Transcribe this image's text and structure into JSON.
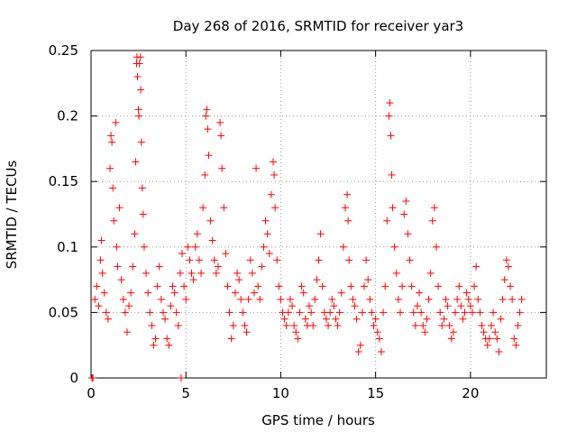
{
  "chart_data": {
    "type": "scatter",
    "title": "Day 268 of 2016, SRMTID for receiver yar3",
    "xlabel": "GPS time / hours",
    "ylabel": "SRMTID / TECUs",
    "xlim": [
      0,
      24
    ],
    "ylim": [
      0,
      0.25
    ],
    "xticks": [
      0,
      5,
      10,
      15,
      20
    ],
    "xtick_labels": [
      "0",
      "5",
      "10",
      "15",
      "20"
    ],
    "yticks": [
      0,
      0.05,
      0.1,
      0.15,
      0.2,
      0.25
    ],
    "ytick_labels": [
      "0",
      "0.05",
      "0.1",
      "0.15",
      "0.2",
      "0.25"
    ],
    "grid": true,
    "marker": "+",
    "color": "#ff0000",
    "series": [
      {
        "name": "SRMTID",
        "points": [
          [
            0.05,
            0.0
          ],
          [
            0.1,
            0.0
          ],
          [
            4.75,
            0.0
          ],
          [
            0.2,
            0.06
          ],
          [
            0.3,
            0.07
          ],
          [
            0.4,
            0.055
          ],
          [
            0.5,
            0.09
          ],
          [
            0.55,
            0.105
          ],
          [
            0.6,
            0.08
          ],
          [
            0.7,
            0.065
          ],
          [
            0.8,
            0.05
          ],
          [
            0.9,
            0.045
          ],
          [
            1.0,
            0.16
          ],
          [
            1.05,
            0.185
          ],
          [
            1.1,
            0.18
          ],
          [
            1.15,
            0.145
          ],
          [
            1.2,
            0.12
          ],
          [
            1.3,
            0.195
          ],
          [
            1.35,
            0.1
          ],
          [
            1.4,
            0.085
          ],
          [
            1.5,
            0.13
          ],
          [
            1.6,
            0.075
          ],
          [
            1.7,
            0.06
          ],
          [
            1.8,
            0.05
          ],
          [
            1.9,
            0.035
          ],
          [
            2.0,
            0.055
          ],
          [
            2.1,
            0.065
          ],
          [
            2.2,
            0.085
          ],
          [
            2.3,
            0.11
          ],
          [
            2.35,
            0.165
          ],
          [
            2.4,
            0.24
          ],
          [
            2.42,
            0.245
          ],
          [
            2.45,
            0.23
          ],
          [
            2.5,
            0.205
          ],
          [
            2.52,
            0.2
          ],
          [
            2.55,
            0.24
          ],
          [
            2.6,
            0.245
          ],
          [
            2.62,
            0.22
          ],
          [
            2.65,
            0.18
          ],
          [
            2.7,
            0.145
          ],
          [
            2.75,
            0.125
          ],
          [
            2.8,
            0.1
          ],
          [
            2.9,
            0.08
          ],
          [
            3.0,
            0.065
          ],
          [
            3.1,
            0.05
          ],
          [
            3.2,
            0.04
          ],
          [
            3.3,
            0.025
          ],
          [
            3.4,
            0.03
          ],
          [
            3.5,
            0.07
          ],
          [
            3.6,
            0.085
          ],
          [
            3.7,
            0.06
          ],
          [
            3.8,
            0.05
          ],
          [
            3.9,
            0.045
          ],
          [
            4.0,
            0.03
          ],
          [
            4.1,
            0.025
          ],
          [
            4.2,
            0.055
          ],
          [
            4.3,
            0.07
          ],
          [
            4.4,
            0.065
          ],
          [
            4.5,
            0.05
          ],
          [
            4.6,
            0.04
          ],
          [
            4.7,
            0.08
          ],
          [
            4.8,
            0.095
          ],
          [
            4.9,
            0.07
          ],
          [
            5.0,
            0.06
          ],
          [
            5.1,
            0.1
          ],
          [
            5.2,
            0.09
          ],
          [
            5.3,
            0.08
          ],
          [
            5.4,
            0.075
          ],
          [
            5.5,
            0.1
          ],
          [
            5.6,
            0.11
          ],
          [
            5.7,
            0.09
          ],
          [
            5.8,
            0.08
          ],
          [
            5.9,
            0.13
          ],
          [
            6.0,
            0.155
          ],
          [
            6.05,
            0.2
          ],
          [
            6.1,
            0.205
          ],
          [
            6.15,
            0.19
          ],
          [
            6.2,
            0.17
          ],
          [
            6.3,
            0.12
          ],
          [
            6.4,
            0.105
          ],
          [
            6.5,
            0.09
          ],
          [
            6.6,
            0.08
          ],
          [
            6.7,
            0.085
          ],
          [
            6.8,
            0.195
          ],
          [
            6.85,
            0.185
          ],
          [
            6.9,
            0.16
          ],
          [
            7.0,
            0.13
          ],
          [
            7.1,
            0.095
          ],
          [
            7.2,
            0.07
          ],
          [
            7.3,
            0.05
          ],
          [
            7.4,
            0.03
          ],
          [
            7.5,
            0.04
          ],
          [
            7.6,
            0.065
          ],
          [
            7.7,
            0.08
          ],
          [
            7.8,
            0.075
          ],
          [
            7.9,
            0.06
          ],
          [
            8.0,
            0.05
          ],
          [
            8.1,
            0.04
          ],
          [
            8.2,
            0.035
          ],
          [
            8.3,
            0.06
          ],
          [
            8.4,
            0.09
          ],
          [
            8.5,
            0.08
          ],
          [
            8.6,
            0.065
          ],
          [
            8.7,
            0.16
          ],
          [
            8.8,
            0.07
          ],
          [
            8.9,
            0.06
          ],
          [
            9.0,
            0.085
          ],
          [
            9.1,
            0.1
          ],
          [
            9.2,
            0.12
          ],
          [
            9.3,
            0.11
          ],
          [
            9.4,
            0.095
          ],
          [
            9.5,
            0.14
          ],
          [
            9.6,
            0.165
          ],
          [
            9.65,
            0.155
          ],
          [
            9.7,
            0.13
          ],
          [
            9.8,
            0.09
          ],
          [
            9.9,
            0.07
          ],
          [
            10.0,
            0.06
          ],
          [
            10.1,
            0.05
          ],
          [
            10.2,
            0.045
          ],
          [
            10.3,
            0.04
          ],
          [
            10.4,
            0.05
          ],
          [
            10.5,
            0.06
          ],
          [
            10.6,
            0.055
          ],
          [
            10.7,
            0.04
          ],
          [
            10.8,
            0.035
          ],
          [
            10.9,
            0.03
          ],
          [
            11.0,
            0.05
          ],
          [
            11.1,
            0.07
          ],
          [
            11.2,
            0.065
          ],
          [
            11.3,
            0.045
          ],
          [
            11.4,
            0.04
          ],
          [
            11.5,
            0.055
          ],
          [
            11.6,
            0.05
          ],
          [
            11.7,
            0.04
          ],
          [
            11.8,
            0.06
          ],
          [
            11.9,
            0.075
          ],
          [
            12.0,
            0.09
          ],
          [
            12.1,
            0.11
          ],
          [
            12.2,
            0.07
          ],
          [
            12.3,
            0.05
          ],
          [
            12.4,
            0.045
          ],
          [
            12.5,
            0.04
          ],
          [
            12.6,
            0.05
          ],
          [
            12.7,
            0.06
          ],
          [
            12.8,
            0.055
          ],
          [
            12.9,
            0.045
          ],
          [
            13.0,
            0.04
          ],
          [
            13.1,
            0.05
          ],
          [
            13.2,
            0.065
          ],
          [
            13.3,
            0.1
          ],
          [
            13.4,
            0.13
          ],
          [
            13.5,
            0.14
          ],
          [
            13.55,
            0.12
          ],
          [
            13.6,
            0.09
          ],
          [
            13.7,
            0.07
          ],
          [
            13.8,
            0.06
          ],
          [
            13.9,
            0.055
          ],
          [
            14.0,
            0.045
          ],
          [
            14.1,
            0.02
          ],
          [
            14.2,
            0.025
          ],
          [
            14.3,
            0.05
          ],
          [
            14.4,
            0.07
          ],
          [
            14.5,
            0.09
          ],
          [
            14.6,
            0.075
          ],
          [
            14.7,
            0.06
          ],
          [
            14.8,
            0.05
          ],
          [
            14.9,
            0.04
          ],
          [
            15.0,
            0.045
          ],
          [
            15.1,
            0.035
          ],
          [
            15.2,
            0.03
          ],
          [
            15.3,
            0.02
          ],
          [
            15.4,
            0.05
          ],
          [
            15.5,
            0.07
          ],
          [
            15.6,
            0.12
          ],
          [
            15.7,
            0.2
          ],
          [
            15.75,
            0.21
          ],
          [
            15.8,
            0.185
          ],
          [
            15.85,
            0.155
          ],
          [
            15.9,
            0.13
          ],
          [
            16.0,
            0.1
          ],
          [
            16.1,
            0.08
          ],
          [
            16.2,
            0.06
          ],
          [
            16.3,
            0.05
          ],
          [
            16.4,
            0.07
          ],
          [
            16.5,
            0.125
          ],
          [
            16.6,
            0.135
          ],
          [
            16.7,
            0.11
          ],
          [
            16.8,
            0.09
          ],
          [
            16.9,
            0.07
          ],
          [
            17.0,
            0.05
          ],
          [
            17.1,
            0.04
          ],
          [
            17.2,
            0.055
          ],
          [
            17.3,
            0.065
          ],
          [
            17.4,
            0.05
          ],
          [
            17.5,
            0.04
          ],
          [
            17.6,
            0.035
          ],
          [
            17.7,
            0.045
          ],
          [
            17.8,
            0.06
          ],
          [
            17.9,
            0.08
          ],
          [
            18.0,
            0.12
          ],
          [
            18.1,
            0.13
          ],
          [
            18.2,
            0.1
          ],
          [
            18.3,
            0.07
          ],
          [
            18.4,
            0.05
          ],
          [
            18.5,
            0.04
          ],
          [
            18.6,
            0.045
          ],
          [
            18.7,
            0.06
          ],
          [
            18.8,
            0.055
          ],
          [
            18.9,
            0.04
          ],
          [
            19.0,
            0.03
          ],
          [
            19.1,
            0.035
          ],
          [
            19.2,
            0.05
          ],
          [
            19.3,
            0.06
          ],
          [
            19.4,
            0.07
          ],
          [
            19.5,
            0.055
          ],
          [
            19.6,
            0.045
          ],
          [
            19.7,
            0.05
          ],
          [
            19.8,
            0.065
          ],
          [
            19.9,
            0.06
          ],
          [
            20.0,
            0.055
          ],
          [
            20.1,
            0.05
          ],
          [
            20.2,
            0.07
          ],
          [
            20.3,
            0.085
          ],
          [
            20.4,
            0.06
          ],
          [
            20.5,
            0.05
          ],
          [
            20.6,
            0.04
          ],
          [
            20.7,
            0.035
          ],
          [
            20.8,
            0.03
          ],
          [
            20.9,
            0.025
          ],
          [
            21.0,
            0.03
          ],
          [
            21.1,
            0.04
          ],
          [
            21.2,
            0.05
          ],
          [
            21.3,
            0.035
          ],
          [
            21.4,
            0.03
          ],
          [
            21.5,
            0.02
          ],
          [
            21.6,
            0.045
          ],
          [
            21.7,
            0.06
          ],
          [
            21.8,
            0.075
          ],
          [
            21.9,
            0.09
          ],
          [
            22.0,
            0.085
          ],
          [
            22.1,
            0.07
          ],
          [
            22.2,
            0.06
          ],
          [
            22.3,
            0.03
          ],
          [
            22.4,
            0.025
          ],
          [
            22.5,
            0.04
          ],
          [
            22.6,
            0.05
          ],
          [
            22.7,
            0.06
          ]
        ]
      }
    ]
  }
}
